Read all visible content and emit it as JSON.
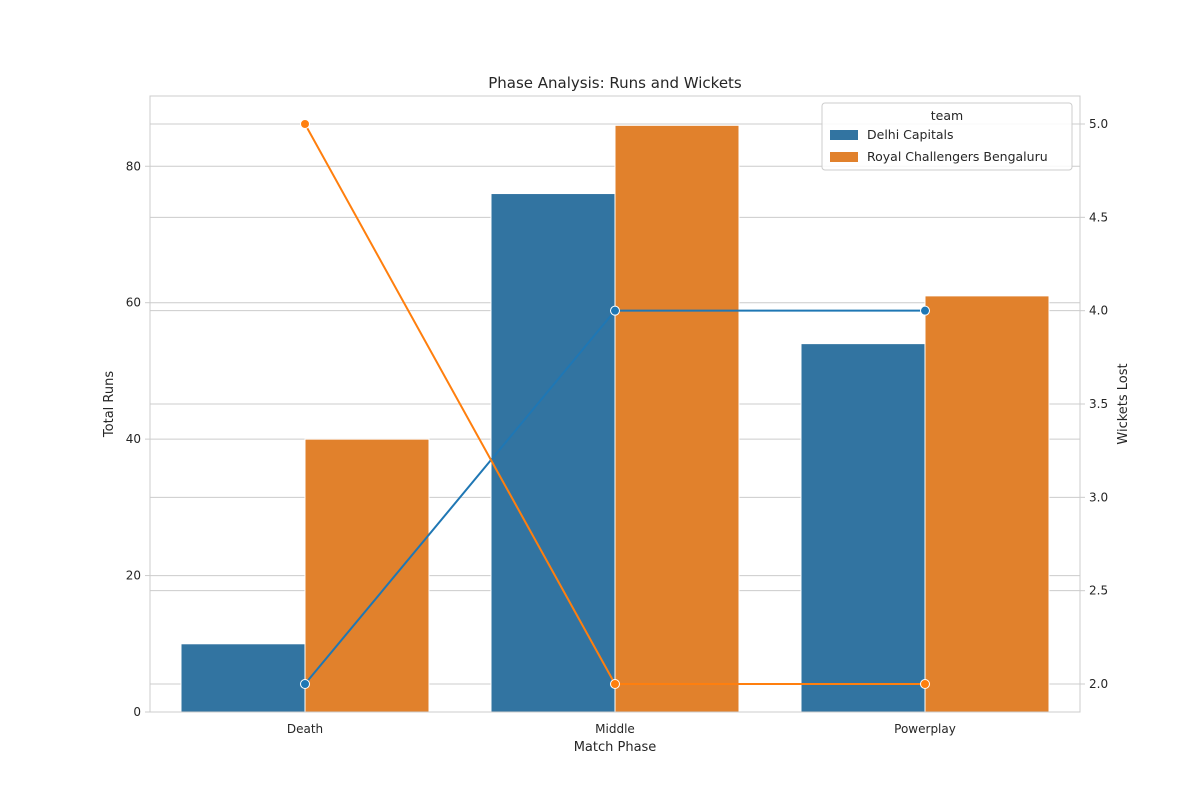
{
  "chart_data": {
    "type": "bar",
    "title": "Phase Analysis: Runs and Wickets",
    "xlabel": "Match Phase",
    "ylabel": "Total Runs",
    "y2label": "Wickets Lost",
    "categories": [
      "Death",
      "Middle",
      "Powerplay"
    ],
    "ylim": [
      0,
      90.3
    ],
    "y2lim": [
      1.85,
      5.15
    ],
    "yticks": [
      0,
      20,
      40,
      60,
      80
    ],
    "y2ticks": [
      2.0,
      2.5,
      3.0,
      3.5,
      4.0,
      4.5,
      5.0
    ],
    "y2tick_labels": [
      "2.0",
      "2.5",
      "3.0",
      "3.5",
      "4.0",
      "4.5",
      "5.0"
    ],
    "grid": true,
    "legend": {
      "title": "team",
      "placement": "top-right"
    },
    "series": [
      {
        "name": "Delhi Capitals",
        "kind": "bar",
        "axis": "left",
        "color": "#3274a1",
        "values": [
          10,
          76,
          54
        ]
      },
      {
        "name": "Royal Challengers Bengaluru",
        "kind": "bar",
        "axis": "left",
        "color": "#e1812c",
        "values": [
          40,
          86,
          61
        ]
      },
      {
        "name": "Delhi Capitals",
        "kind": "line",
        "axis": "right",
        "color": "#1f77b4",
        "values": [
          2,
          4,
          4
        ]
      },
      {
        "name": "Royal Challengers Bengaluru",
        "kind": "line",
        "axis": "right",
        "color": "#ff7f0e",
        "values": [
          5,
          2,
          2
        ]
      }
    ]
  }
}
